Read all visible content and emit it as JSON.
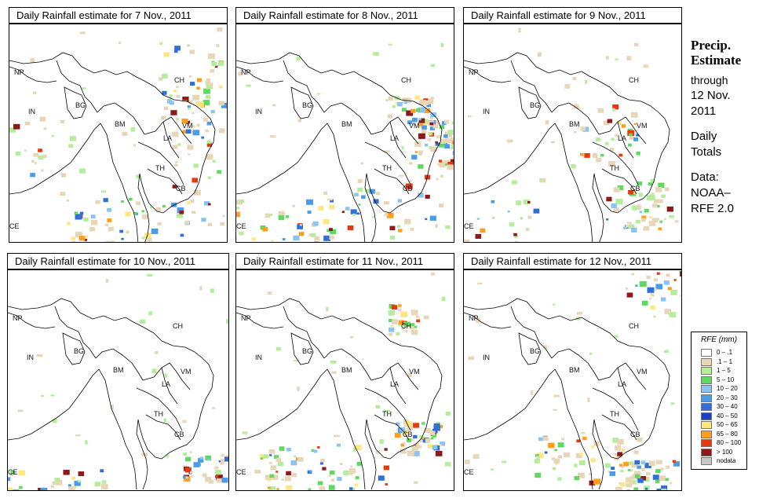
{
  "panels": [
    {
      "title": "Daily Rainfall estimate for  7 Nov., 2011"
    },
    {
      "title": "Daily Rainfall estimate for  8 Nov., 2011"
    },
    {
      "title": "Daily Rainfall estimate for  9 Nov., 2011"
    },
    {
      "title": "Daily Rainfall estimate for  10 Nov., 2011"
    },
    {
      "title": "Daily Rainfall estimate for  11 Nov., 2011"
    },
    {
      "title": "Daily Rainfall estimate for  12 Nov., 2011"
    }
  ],
  "countries": [
    "NP",
    "CH",
    "IN",
    "BG",
    "BM",
    "VM",
    "LA",
    "TH",
    "CB",
    "CE"
  ],
  "side": {
    "heading1": "Precip.",
    "heading2": "Estimate",
    "through": "through",
    "date1": "12 Nov.",
    "date2": "2011",
    "daily": "Daily",
    "totals": "Totals",
    "data1": "Data:",
    "data2": "NOAA–",
    "data3": "RFE 2.0"
  },
  "legend": {
    "title": "RFE (mm)",
    "items": [
      {
        "label": "0 – .1",
        "color": "#ffffff"
      },
      {
        "label": ".1 – 1",
        "color": "#e8d6b8"
      },
      {
        "label": "1 – 5",
        "color": "#b4ee9c"
      },
      {
        "label": "5 – 10",
        "color": "#5fd95f"
      },
      {
        "label": "10 – 20",
        "color": "#8ac4f2"
      },
      {
        "label": "20 – 30",
        "color": "#4a9ce8"
      },
      {
        "label": "30 – 40",
        "color": "#2f6fd6"
      },
      {
        "label": "40 – 50",
        "color": "#1c3fc4"
      },
      {
        "label": "50 – 65",
        "color": "#ffe680"
      },
      {
        "label": "65 – 80",
        "color": "#ff9e1c"
      },
      {
        "label": "80 – 100",
        "color": "#e53a0e"
      },
      {
        "label": "> 100",
        "color": "#8c1a1a"
      },
      {
        "label": "nodata",
        "color": "#c8c8c8"
      }
    ]
  }
}
